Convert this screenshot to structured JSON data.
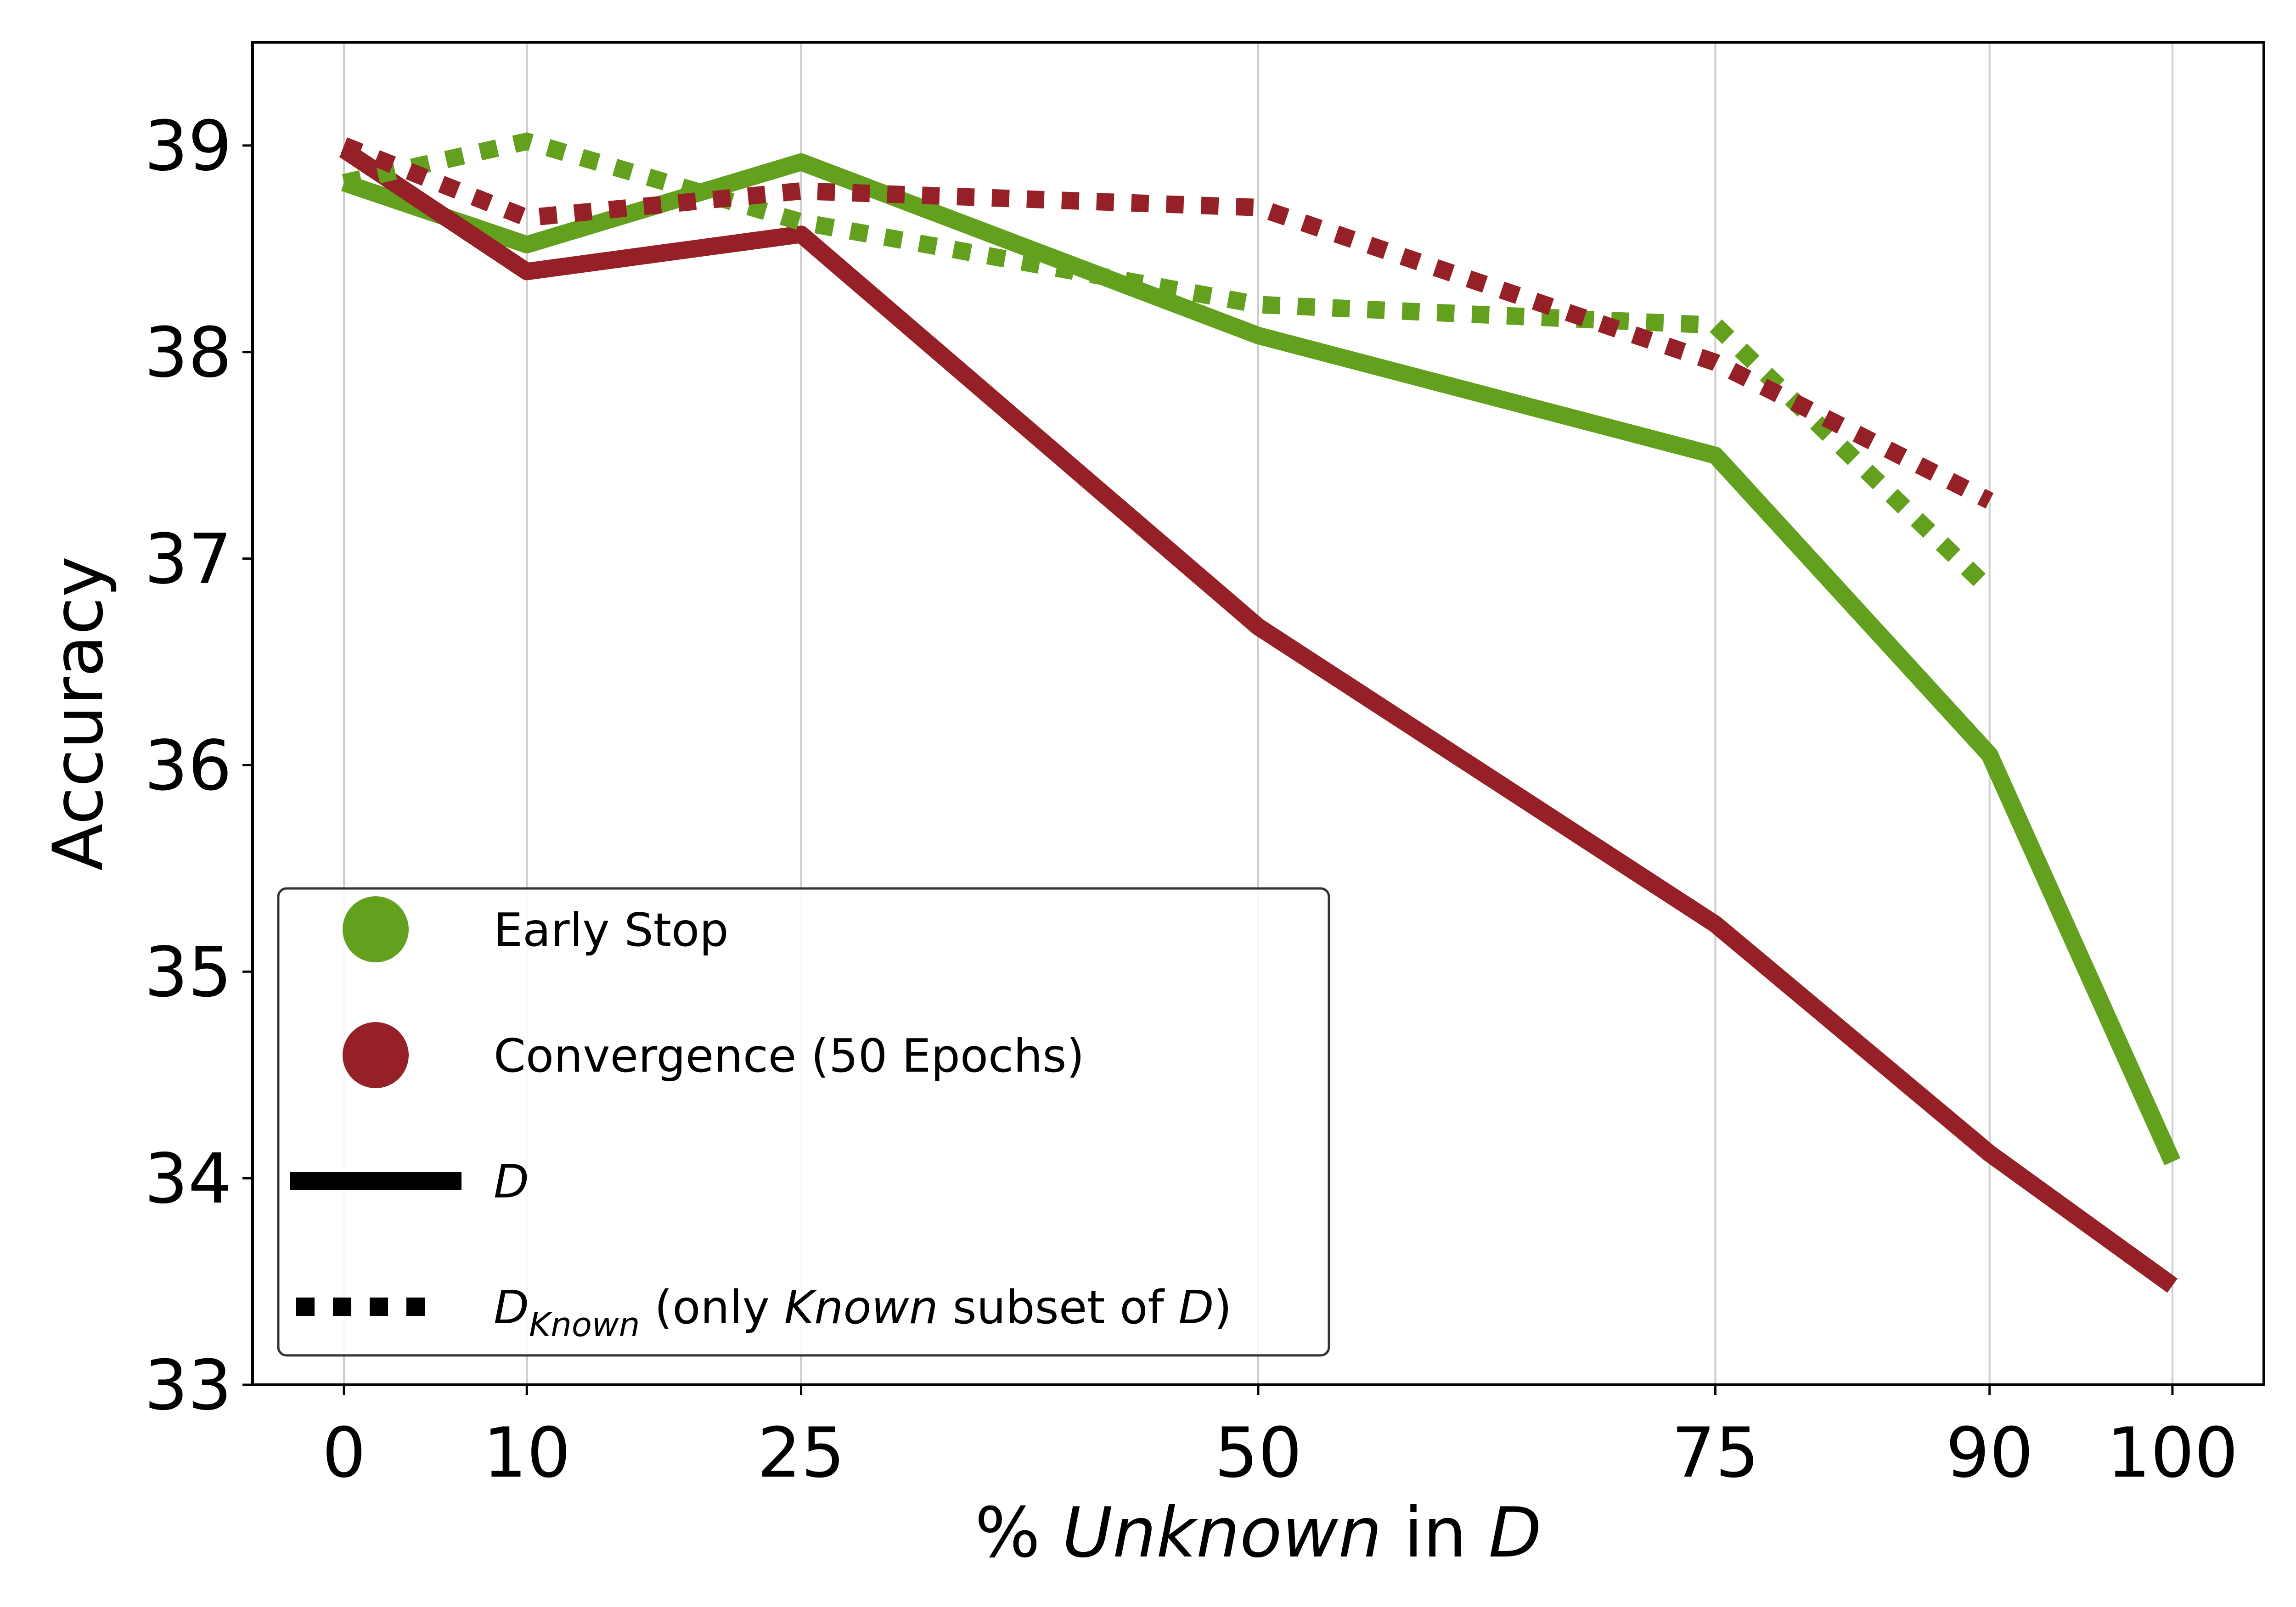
{
  "chart_data": {
    "type": "line",
    "xlabel": {
      "pre": "% ",
      "italic": "Unknown",
      "mid": " in ",
      "italic2": "D"
    },
    "ylabel": "Accuracy",
    "x": [
      0,
      10,
      25,
      50,
      75,
      90,
      100
    ],
    "x_tick_labels": [
      "0",
      "10",
      "25",
      "50",
      "75",
      "90",
      "100"
    ],
    "y_ticks": [
      33,
      34,
      35,
      36,
      37,
      38,
      39
    ],
    "y_tick_labels": [
      "33",
      "34",
      "35",
      "36",
      "37",
      "38",
      "39"
    ],
    "xlim": [
      -5,
      105
    ],
    "ylim": [
      33,
      39.5
    ],
    "grid": {
      "vertical": true,
      "horizontal": false
    },
    "colors": {
      "early_stop": "#63a01d",
      "convergence": "#962027",
      "grid": "#cccccc",
      "legend_border": "#333333"
    },
    "series": [
      {
        "color_key": "early_stop",
        "style": "solid",
        "x": [
          0,
          10,
          25,
          50,
          75,
          90,
          100
        ],
        "values": [
          38.82,
          38.52,
          38.92,
          38.08,
          37.5,
          36.05,
          34.08
        ]
      },
      {
        "color_key": "convergence",
        "style": "solid",
        "x": [
          0,
          10,
          25,
          50,
          75,
          90,
          100
        ],
        "values": [
          38.98,
          38.39,
          38.57,
          36.67,
          35.23,
          34.12,
          33.48
        ]
      },
      {
        "color_key": "early_stop",
        "style": "dotted",
        "x": [
          0,
          10,
          25,
          50,
          75,
          90
        ],
        "values": [
          38.82,
          39.02,
          38.63,
          38.23,
          38.13,
          36.85
        ]
      },
      {
        "color_key": "convergence",
        "style": "dotted",
        "x": [
          0,
          10,
          25,
          50,
          75,
          90
        ],
        "values": [
          39.0,
          38.65,
          38.78,
          38.7,
          37.95,
          37.28
        ]
      }
    ],
    "legend": {
      "position": "lower-left",
      "entries": [
        {
          "marker": "dot",
          "color_key": "early_stop",
          "label": "Early Stop"
        },
        {
          "marker": "dot",
          "color_key": "convergence",
          "label": "Convergence (50 Epochs)"
        },
        {
          "marker": "solid-line",
          "label_italic": "D"
        },
        {
          "marker": "dotted-line",
          "label_italic": "D",
          "label_sub": "Known",
          "label_rest_1": " (only ",
          "label_italic_2": "Known",
          "label_rest_2": " subset of ",
          "label_italic_3": "D",
          "label_rest_3": ")"
        }
      ]
    }
  }
}
